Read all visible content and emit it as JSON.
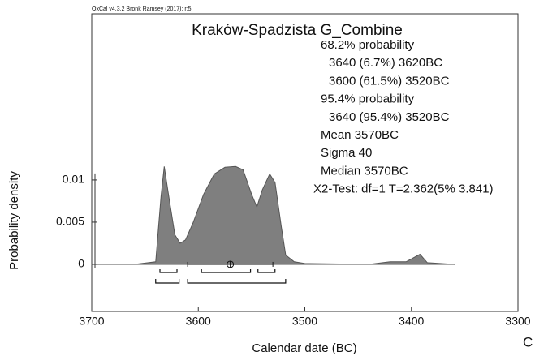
{
  "chart_data": {
    "type": "area",
    "credit": "OxCal v4.3.2 Bronk Ramsey (2017); r:5",
    "title": "Kraków-Spadzista G_Combine",
    "annotations": [
      "68.2% probability",
      "3640 (6.7%) 3620BC",
      "3600 (61.5%) 3520BC",
      "95.4% probability",
      "3640 (95.4%) 3520BC",
      "Mean 3570BC",
      "Sigma 40",
      "Median 3570BC",
      "X2-Test: df=1 T=2.362(5% 3.841)"
    ],
    "x_label": "Calendar date (BC)",
    "y_label": "Probability density",
    "panel_label": "C",
    "x": [
      3700,
      3660,
      3640,
      3635,
      3632,
      3628,
      3622,
      3617,
      3612,
      3605,
      3595,
      3585,
      3575,
      3565,
      3558,
      3550,
      3545,
      3540,
      3533,
      3528,
      3522,
      3518,
      3510,
      3500,
      3440,
      3420,
      3405,
      3392,
      3385,
      3360
    ],
    "values": [
      0,
      0,
      0.0003,
      0.008,
      0.0116,
      0.0083,
      0.0035,
      0.0025,
      0.0029,
      0.0049,
      0.0083,
      0.0107,
      0.0115,
      0.0116,
      0.0112,
      0.0083,
      0.0068,
      0.0088,
      0.0107,
      0.0097,
      0.0044,
      0.0011,
      0.0003,
      0.0001,
      0,
      0.0003,
      0.0003,
      0.0012,
      0.0002,
      0
    ],
    "color": "#7f7f7f",
    "ranges_68": [
      [
        3636,
        3620
      ],
      [
        3597,
        3551
      ],
      [
        3544,
        3528
      ]
    ],
    "ranges_95": [
      [
        3640,
        3618
      ],
      [
        3610,
        3518
      ]
    ],
    "mean": 3570,
    "sigma": 40,
    "xlim": [
      3700,
      3300
    ],
    "xticks": [
      3700,
      3600,
      3500,
      3400,
      3300
    ],
    "ylim": [
      -0.00558,
      0.0297
    ],
    "yticks": [
      0,
      0.005,
      0.01
    ]
  }
}
